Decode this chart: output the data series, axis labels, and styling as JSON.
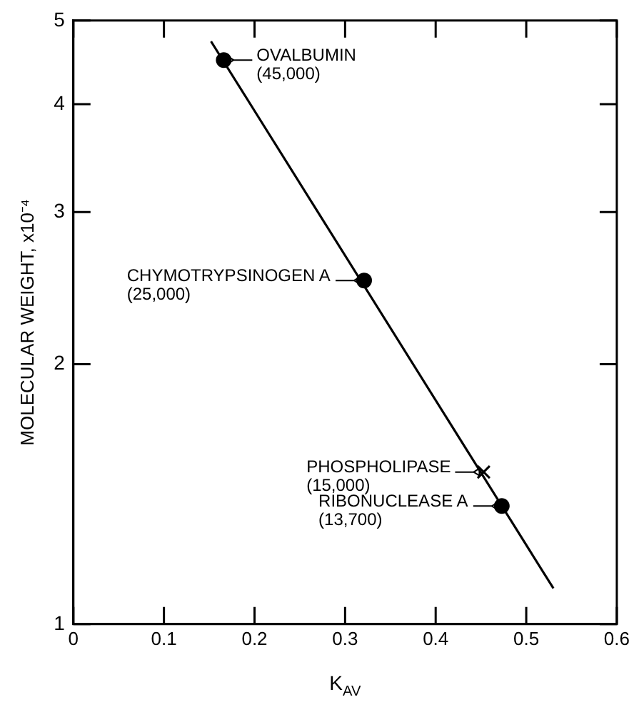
{
  "chart_data": {
    "type": "scatter",
    "xlabel": "K$_{AV}$",
    "ylabel": "MOLECULAR WEIGHT, x10⁻⁴",
    "log": "y",
    "grid": false,
    "legend": false,
    "xlim": [
      0,
      0.6
    ],
    "xticks": [
      0,
      0.1,
      0.2,
      0.3,
      0.4,
      0.5,
      0.6
    ],
    "ylim": [
      1,
      5
    ],
    "yticks": [
      1,
      2,
      3,
      4,
      5
    ],
    "series": [
      {
        "type": "line",
        "color": "#000000",
        "marker": "none",
        "x": [
          0.152,
          0.53
        ],
        "values": [
          4.73,
          1.1
        ]
      },
      {
        "color": "#000000",
        "marker": "circle",
        "x": [
          0.166,
          0.321,
          0.473
        ],
        "values": [
          4.5,
          2.5,
          1.37
        ]
      },
      {
        "color": "#000000",
        "marker": "cross",
        "x": [
          0.453
        ],
        "values": [
          1.5
        ]
      }
    ],
    "annotations": [
      {
        "text": "OVALBUMIN\n(45,000)",
        "x": 0.166,
        "y": 4.5
      },
      {
        "text": "CHYMOTRYPSINOGEN A\n(25,000)",
        "x": 0.321,
        "y": 2.5
      },
      {
        "text": "PHOSPHOLIPASE\n(15,000)",
        "x": 0.453,
        "y": 1.5
      },
      {
        "text": "RIBONUCLEASE A\n(13,700)",
        "x": 0.473,
        "y": 1.37
      }
    ]
  }
}
